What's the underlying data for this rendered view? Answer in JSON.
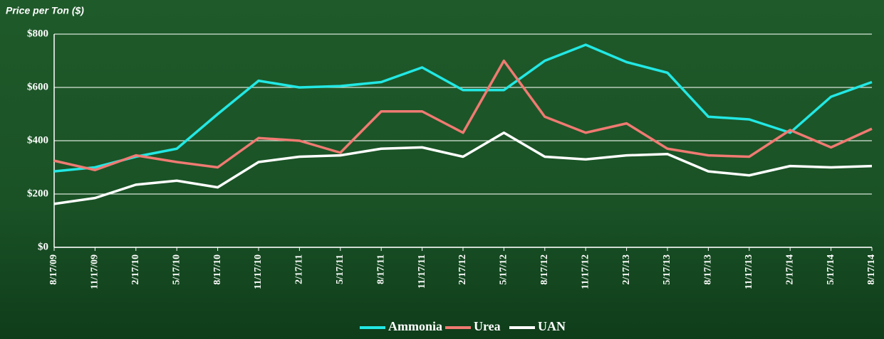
{
  "chart_data": {
    "type": "line",
    "title": "Price per Ton ($)",
    "categories": [
      "8/17/09",
      "11/17/09",
      "2/17/10",
      "5/17/10",
      "8/17/10",
      "11/17/10",
      "2/17/11",
      "5/17/11",
      "8/17/11",
      "11/17/11",
      "2/17/12",
      "5/17/12",
      "8/17/12",
      "11/17/12",
      "2/17/13",
      "5/17/13",
      "8/17/13",
      "11/17/13",
      "2/17/14",
      "5/17/14",
      "8/17/14"
    ],
    "series": [
      {
        "name": "Ammonia",
        "color": "#22e8e4",
        "values": [
          285,
          300,
          340,
          370,
          500,
          625,
          600,
          605,
          620,
          675,
          590,
          590,
          700,
          760,
          695,
          655,
          490,
          480,
          430,
          565,
          620
        ]
      },
      {
        "name": "Urea",
        "color": "#f07a72",
        "values": [
          325,
          290,
          345,
          320,
          300,
          410,
          400,
          355,
          510,
          510,
          430,
          700,
          490,
          430,
          465,
          370,
          345,
          340,
          440,
          375,
          445
        ]
      },
      {
        "name": "UAN",
        "color": "#ffffff",
        "values": [
          163,
          185,
          235,
          250,
          225,
          320,
          340,
          345,
          370,
          375,
          340,
          430,
          340,
          330,
          345,
          350,
          285,
          270,
          305,
          300,
          305
        ]
      }
    ],
    "ylim": [
      0,
      800
    ],
    "yticks": [
      {
        "value": 0,
        "label": "$0"
      },
      {
        "value": 200,
        "label": "$200"
      },
      {
        "value": 400,
        "label": "$400"
      },
      {
        "value": 600,
        "label": "$600"
      },
      {
        "value": 800,
        "label": "$800"
      }
    ],
    "grid": true,
    "legend": "bottom"
  }
}
